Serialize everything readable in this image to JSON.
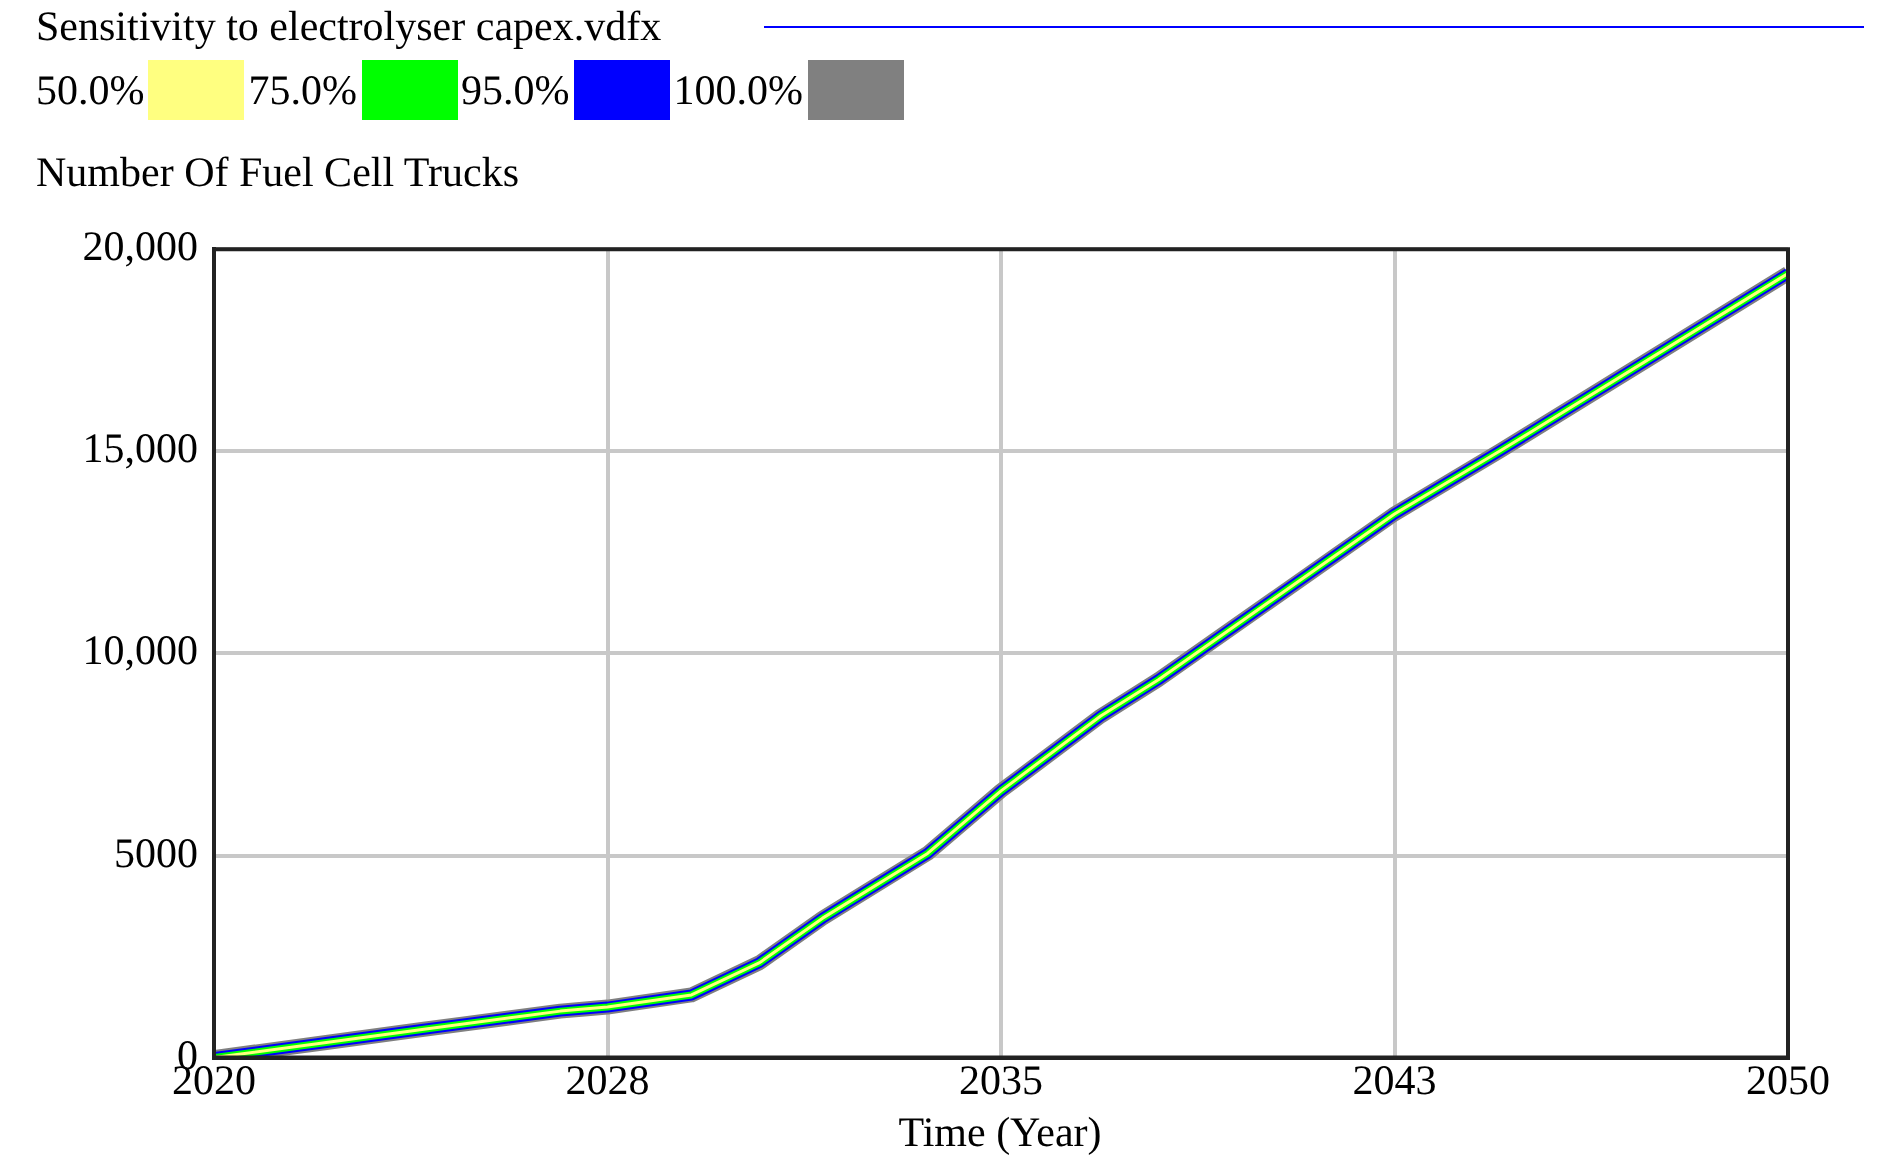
{
  "chart_data": {
    "type": "line",
    "legend_title": "Sensitivity to electrolyser capex.vdfx",
    "ylabel": "Number Of Fuel Cell Trucks",
    "xlabel": "Time (Year)",
    "x": [
      2020,
      2022,
      2024,
      2026.6,
      2027.5,
      2029.1,
      2030.4,
      2031.6,
      2033.6,
      2035,
      2036.9,
      2038,
      2042.5,
      2044.5,
      2050
    ],
    "series": [
      {
        "name": "100.0%",
        "color": "#808080",
        "values": [
          0,
          350,
          700,
          1150,
          1250,
          1550,
          2350,
          3450,
          5050,
          6600,
          8450,
          9350,
          13450,
          15000,
          19400
        ]
      },
      {
        "name": "95.0%",
        "color": "#0000ff",
        "values": [
          0,
          350,
          700,
          1150,
          1250,
          1550,
          2350,
          3450,
          5050,
          6600,
          8450,
          9350,
          13450,
          15000,
          19400
        ]
      },
      {
        "name": "75.0%",
        "color": "#00ff00",
        "values": [
          0,
          350,
          700,
          1150,
          1250,
          1550,
          2350,
          3450,
          5050,
          6600,
          8450,
          9350,
          13450,
          15000,
          19400
        ]
      },
      {
        "name": "50.0%",
        "color": "#ffff80",
        "values": [
          0,
          350,
          700,
          1150,
          1250,
          1550,
          2350,
          3450,
          5050,
          6600,
          8450,
          9350,
          13450,
          15000,
          19400
        ]
      }
    ],
    "xlim": [
      2020,
      2050
    ],
    "xticks": [
      2020,
      {
        "value": 2027.5,
        "label": "2028"
      },
      2035,
      {
        "value": 2042.5,
        "label": "2043"
      },
      2050
    ],
    "ylim": [
      0,
      20000
    ],
    "yticks": [
      0,
      5000,
      {
        "value": 10000,
        "label": "10,000"
      },
      {
        "value": 15000,
        "label": "15,000"
      },
      {
        "value": 20000,
        "label": "20,000"
      }
    ],
    "grid": true,
    "legend": "top left",
    "marker": "none",
    "line_style": "solid"
  }
}
